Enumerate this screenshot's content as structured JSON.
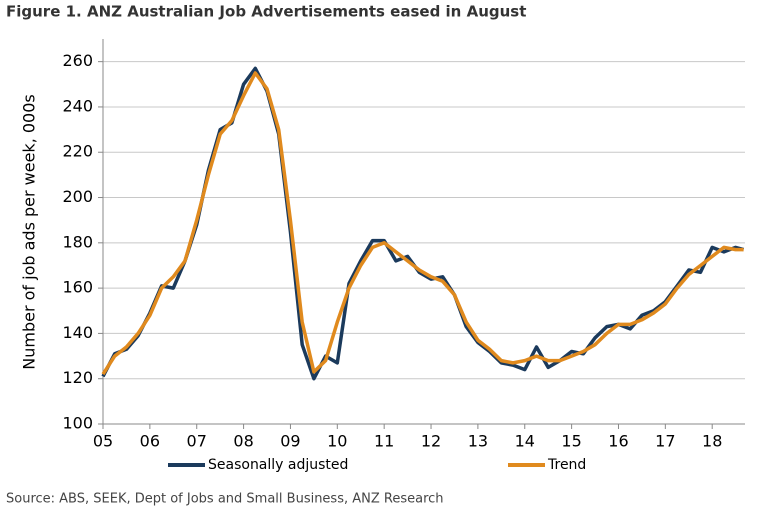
{
  "chart_data": {
    "type": "line",
    "title": "Figure 1. ANZ Australian Job Advertisements eased in August",
    "ylabel": "Number of job ads per week, 000s",
    "source": "Source: ABS, SEEK, Dept of Jobs and Small Business, ANZ Research",
    "x": [
      5.0,
      5.25,
      5.5,
      5.75,
      6.0,
      6.25,
      6.5,
      6.75,
      7.0,
      7.25,
      7.5,
      7.75,
      8.0,
      8.25,
      8.5,
      8.75,
      9.0,
      9.25,
      9.5,
      9.75,
      10.0,
      10.25,
      10.5,
      10.75,
      11.0,
      11.25,
      11.5,
      11.75,
      12.0,
      12.25,
      12.5,
      12.75,
      13.0,
      13.25,
      13.5,
      13.75,
      14.0,
      14.25,
      14.5,
      14.75,
      15.0,
      15.25,
      15.5,
      15.75,
      16.0,
      16.25,
      16.5,
      16.75,
      17.0,
      17.25,
      17.5,
      17.75,
      18.0,
      18.25,
      18.5,
      18.67
    ],
    "series": [
      {
        "name": "Seasonally adjusted",
        "color": "#1b3a5c",
        "values": [
          121,
          131,
          133,
          139,
          149,
          161,
          160,
          172,
          188,
          212,
          230,
          233,
          250,
          257,
          247,
          228,
          185,
          135,
          120,
          130,
          127,
          162,
          172,
          181,
          181,
          172,
          174,
          167,
          164,
          165,
          157,
          143,
          136,
          132,
          127,
          126,
          124,
          134,
          125,
          128,
          132,
          131,
          138,
          143,
          144,
          142,
          148,
          150,
          154,
          161,
          168,
          167,
          178,
          176,
          178,
          177
        ]
      },
      {
        "name": "Trend",
        "color": "#e08a1e",
        "values": [
          122,
          130,
          134,
          140,
          148,
          160,
          165,
          172,
          190,
          210,
          228,
          234,
          245,
          255,
          248,
          230,
          190,
          145,
          123,
          128,
          145,
          160,
          170,
          178,
          180,
          176,
          172,
          168,
          165,
          163,
          157,
          145,
          137,
          133,
          128,
          127,
          128,
          130,
          128,
          128,
          130,
          132,
          135,
          140,
          144,
          144,
          146,
          149,
          153,
          160,
          166,
          170,
          174,
          178,
          177,
          177
        ]
      }
    ],
    "xlim": [
      5,
      18.7
    ],
    "xticks": [
      {
        "value": 5,
        "label": "05"
      },
      {
        "value": 6,
        "label": "06"
      },
      {
        "value": 7,
        "label": "07"
      },
      {
        "value": 8,
        "label": "08"
      },
      {
        "value": 9,
        "label": "09"
      },
      {
        "value": 10,
        "label": "10"
      },
      {
        "value": 11,
        "label": "11"
      },
      {
        "value": 12,
        "label": "12"
      },
      {
        "value": 13,
        "label": "13"
      },
      {
        "value": 14,
        "label": "14"
      },
      {
        "value": 15,
        "label": "15"
      },
      {
        "value": 16,
        "label": "16"
      },
      {
        "value": 17,
        "label": "17"
      },
      {
        "value": 18,
        "label": "18"
      }
    ],
    "ylim": [
      100,
      270
    ],
    "yticks": [
      100,
      120,
      140,
      160,
      180,
      200,
      220,
      240,
      260
    ],
    "grid": true
  }
}
